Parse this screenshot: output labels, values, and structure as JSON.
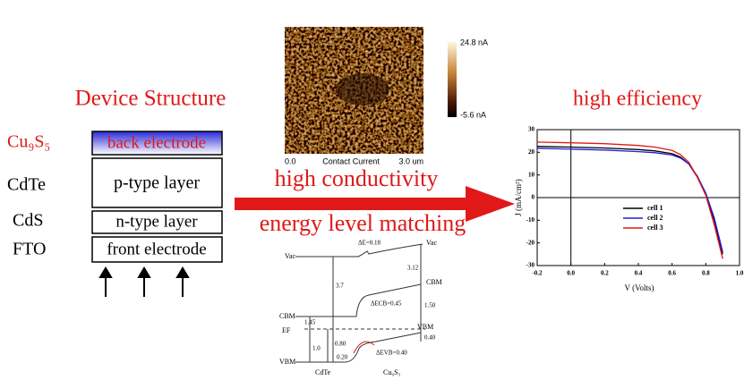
{
  "device_structure": {
    "title": "Device Structure",
    "layers": [
      {
        "material": "Cu₉S₅",
        "label": "back electrode"
      },
      {
        "material": "CdTe",
        "label": "p-type layer"
      },
      {
        "material": "CdS",
        "label": "n-type layer"
      },
      {
        "material": "FTO",
        "label": "front electrode"
      }
    ]
  },
  "afm": {
    "max_label": "24.8 nA",
    "min_label": "-5.6 nA",
    "x_start": "0.0",
    "caption": "Contact Current",
    "x_end": "3.0 um"
  },
  "arrow_labels": [
    "high conductivity",
    "energy level matching"
  ],
  "energy_diagram": {
    "labels": [
      "Vac",
      "ΔE=0.18",
      "Vac",
      "3.12",
      "3.7",
      "CBM",
      "ΔECB=0.45",
      "CBM",
      "1.45",
      "EF",
      "1.0",
      "0.80",
      "1.50",
      "0.40",
      "ΔEVB=0.40",
      "VBM",
      "0.20",
      "VBM"
    ],
    "materials": [
      "CdTe",
      "Cu₉S₅"
    ]
  },
  "chart_data": {
    "type": "line",
    "title": "high efficiency",
    "x_label": "V (Volts)",
    "y_label": "J (mA/cm²)",
    "x": [
      -0.2,
      0,
      0.2,
      0.4,
      0.5,
      0.6,
      0.65,
      0.7,
      0.75,
      0.8,
      0.85,
      0.9
    ],
    "series": [
      {
        "name": "cell 1",
        "color": "#000000",
        "values": [
          22.6,
          22.3,
          21.9,
          21.2,
          20.6,
          19.4,
          17.9,
          14.8,
          9,
          1.5,
          -10,
          -25
        ]
      },
      {
        "name": "cell 2",
        "color": "#1f1fd0",
        "values": [
          21.8,
          21.4,
          21.0,
          20.3,
          19.8,
          18.8,
          17.5,
          14.8,
          9.5,
          2,
          -9,
          -24
        ]
      },
      {
        "name": "cell 3",
        "color": "#e01818",
        "values": [
          24.5,
          24.2,
          23.8,
          23.0,
          22.3,
          20.8,
          19,
          15.5,
          9,
          1,
          -12,
          -27
        ]
      }
    ],
    "xlim": [
      -0.2,
      1.0
    ],
    "ylim": [
      -30,
      30
    ],
    "xticks": [
      -0.2,
      {
        "value": 0,
        "label": "0.0"
      },
      0.2,
      0.4,
      0.6,
      0.8,
      {
        "value": 1,
        "label": "1.0"
      }
    ],
    "yticks": [
      -30,
      -20,
      -10,
      0,
      10,
      20,
      30
    ]
  }
}
